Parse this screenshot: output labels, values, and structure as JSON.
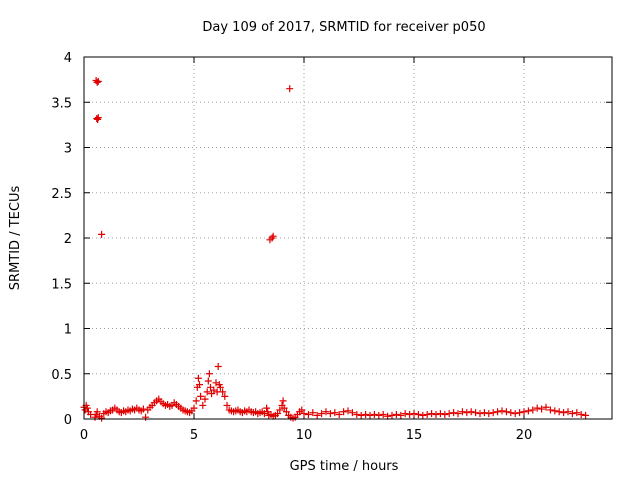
{
  "chart_data": {
    "type": "scatter",
    "title": "Day 109 of 2017, SRMTID for receiver p050",
    "xlabel": "GPS time / hours",
    "ylabel": "SRMTID / TECUs",
    "xlim": [
      0,
      24
    ],
    "ylim": [
      0,
      4
    ],
    "x_ticks": [
      0,
      5,
      10,
      15,
      20
    ],
    "x_tick_labels": [
      "0",
      "5",
      "10",
      "15",
      "20"
    ],
    "y_ticks": [
      0,
      0.5,
      1,
      1.5,
      2,
      2.5,
      3,
      3.5,
      4
    ],
    "y_tick_labels": [
      "0",
      "0.5",
      "1",
      "1.5",
      "2",
      "2.5",
      "3",
      "3.5",
      "4"
    ],
    "grid": true,
    "series": [
      {
        "name": "SRMTID",
        "color": "#e00000",
        "marker": "plus",
        "points": [
          [
            0.0,
            0.13
          ],
          [
            0.05,
            0.1
          ],
          [
            0.1,
            0.15
          ],
          [
            0.15,
            0.12
          ],
          [
            0.2,
            0.08
          ],
          [
            0.3,
            0.05
          ],
          [
            0.5,
            0.02
          ],
          [
            0.55,
            0.05
          ],
          [
            0.6,
            0.08
          ],
          [
            0.7,
            0.03
          ],
          [
            0.8,
            0.01
          ],
          [
            0.9,
            0.06
          ],
          [
            1.0,
            0.08
          ],
          [
            1.1,
            0.07
          ],
          [
            1.2,
            0.09
          ],
          [
            1.3,
            0.1
          ],
          [
            1.4,
            0.12
          ],
          [
            1.5,
            0.1
          ],
          [
            1.6,
            0.08
          ],
          [
            1.7,
            0.07
          ],
          [
            1.8,
            0.09
          ],
          [
            1.9,
            0.08
          ],
          [
            2.0,
            0.1
          ],
          [
            2.1,
            0.09
          ],
          [
            2.2,
            0.11
          ],
          [
            2.3,
            0.1
          ],
          [
            2.4,
            0.12
          ],
          [
            2.5,
            0.1
          ],
          [
            2.6,
            0.09
          ],
          [
            2.7,
            0.11
          ],
          [
            2.8,
            0.02
          ],
          [
            2.9,
            0.1
          ],
          [
            3.0,
            0.13
          ],
          [
            3.1,
            0.15
          ],
          [
            3.2,
            0.18
          ],
          [
            3.3,
            0.2
          ],
          [
            3.4,
            0.22
          ],
          [
            3.5,
            0.19
          ],
          [
            3.6,
            0.17
          ],
          [
            3.7,
            0.15
          ],
          [
            3.8,
            0.16
          ],
          [
            3.9,
            0.14
          ],
          [
            4.0,
            0.15
          ],
          [
            4.1,
            0.18
          ],
          [
            4.2,
            0.16
          ],
          [
            4.3,
            0.14
          ],
          [
            4.4,
            0.12
          ],
          [
            4.5,
            0.1
          ],
          [
            4.6,
            0.09
          ],
          [
            4.7,
            0.08
          ],
          [
            4.8,
            0.07
          ],
          [
            4.9,
            0.09
          ],
          [
            5.0,
            0.12
          ],
          [
            5.1,
            0.2
          ],
          [
            5.15,
            0.35
          ],
          [
            5.2,
            0.45
          ],
          [
            5.25,
            0.38
          ],
          [
            5.3,
            0.25
          ],
          [
            5.4,
            0.15
          ],
          [
            5.5,
            0.22
          ],
          [
            5.6,
            0.3
          ],
          [
            5.65,
            0.42
          ],
          [
            5.7,
            0.5
          ],
          [
            5.75,
            0.35
          ],
          [
            5.8,
            0.28
          ],
          [
            5.9,
            0.32
          ],
          [
            6.0,
            0.4
          ],
          [
            6.05,
            0.3
          ],
          [
            6.1,
            0.58
          ],
          [
            6.15,
            0.38
          ],
          [
            6.2,
            0.35
          ],
          [
            6.3,
            0.3
          ],
          [
            6.4,
            0.25
          ],
          [
            6.5,
            0.15
          ],
          [
            6.6,
            0.1
          ],
          [
            6.7,
            0.09
          ],
          [
            6.8,
            0.08
          ],
          [
            6.9,
            0.09
          ],
          [
            7.0,
            0.1
          ],
          [
            7.1,
            0.08
          ],
          [
            7.2,
            0.07
          ],
          [
            7.3,
            0.09
          ],
          [
            7.4,
            0.08
          ],
          [
            7.5,
            0.1
          ],
          [
            7.6,
            0.08
          ],
          [
            7.7,
            0.07
          ],
          [
            7.8,
            0.08
          ],
          [
            7.9,
            0.06
          ],
          [
            8.0,
            0.07
          ],
          [
            8.1,
            0.08
          ],
          [
            8.2,
            0.06
          ],
          [
            8.3,
            0.12
          ],
          [
            8.35,
            0.08
          ],
          [
            8.4,
            0.04
          ],
          [
            8.5,
            0.05
          ],
          [
            8.6,
            0.03
          ],
          [
            8.7,
            0.04
          ],
          [
            8.8,
            0.06
          ],
          [
            8.9,
            0.1
          ],
          [
            9.0,
            0.15
          ],
          [
            9.05,
            0.2
          ],
          [
            9.1,
            0.12
          ],
          [
            9.2,
            0.08
          ],
          [
            9.3,
            0.04
          ],
          [
            9.4,
            0.02
          ],
          [
            9.5,
            0.01
          ],
          [
            9.6,
            0.02
          ],
          [
            9.7,
            0.05
          ],
          [
            9.8,
            0.08
          ],
          [
            9.9,
            0.1
          ],
          [
            10.0,
            0.06
          ],
          [
            10.2,
            0.05
          ],
          [
            10.4,
            0.07
          ],
          [
            10.6,
            0.04
          ],
          [
            10.8,
            0.06
          ],
          [
            11.0,
            0.08
          ],
          [
            11.2,
            0.06
          ],
          [
            11.4,
            0.07
          ],
          [
            11.6,
            0.05
          ],
          [
            11.8,
            0.08
          ],
          [
            12.0,
            0.09
          ],
          [
            12.2,
            0.07
          ],
          [
            12.4,
            0.05
          ],
          [
            12.6,
            0.04
          ],
          [
            12.8,
            0.05
          ],
          [
            13.0,
            0.04
          ],
          [
            13.2,
            0.05
          ],
          [
            13.4,
            0.04
          ],
          [
            13.6,
            0.05
          ],
          [
            13.8,
            0.03
          ],
          [
            14.0,
            0.04
          ],
          [
            14.2,
            0.05
          ],
          [
            14.4,
            0.04
          ],
          [
            14.6,
            0.06
          ],
          [
            14.8,
            0.05
          ],
          [
            15.0,
            0.06
          ],
          [
            15.2,
            0.05
          ],
          [
            15.4,
            0.04
          ],
          [
            15.6,
            0.05
          ],
          [
            15.8,
            0.06
          ],
          [
            16.0,
            0.05
          ],
          [
            16.2,
            0.06
          ],
          [
            16.4,
            0.05
          ],
          [
            16.6,
            0.06
          ],
          [
            16.8,
            0.07
          ],
          [
            17.0,
            0.06
          ],
          [
            17.2,
            0.08
          ],
          [
            17.4,
            0.07
          ],
          [
            17.6,
            0.08
          ],
          [
            17.8,
            0.07
          ],
          [
            18.0,
            0.06
          ],
          [
            18.2,
            0.07
          ],
          [
            18.4,
            0.06
          ],
          [
            18.6,
            0.07
          ],
          [
            18.8,
            0.08
          ],
          [
            19.0,
            0.09
          ],
          [
            19.2,
            0.08
          ],
          [
            19.4,
            0.07
          ],
          [
            19.6,
            0.06
          ],
          [
            19.8,
            0.07
          ],
          [
            20.0,
            0.08
          ],
          [
            20.2,
            0.09
          ],
          [
            20.4,
            0.1
          ],
          [
            20.6,
            0.12
          ],
          [
            20.8,
            0.11
          ],
          [
            21.0,
            0.13
          ],
          [
            21.2,
            0.1
          ],
          [
            21.4,
            0.09
          ],
          [
            21.6,
            0.08
          ],
          [
            21.8,
            0.07
          ],
          [
            22.0,
            0.08
          ],
          [
            22.2,
            0.06
          ],
          [
            22.4,
            0.07
          ],
          [
            22.6,
            0.05
          ],
          [
            22.8,
            0.04
          ],
          [
            0.55,
            3.74
          ],
          [
            0.6,
            3.72
          ],
          [
            0.65,
            3.73
          ],
          [
            0.58,
            3.32
          ],
          [
            0.65,
            3.33
          ],
          [
            0.62,
            3.31
          ],
          [
            0.8,
            2.04
          ],
          [
            8.45,
            1.98
          ],
          [
            8.55,
            2.0
          ],
          [
            8.6,
            2.02
          ],
          [
            9.35,
            3.65
          ]
        ]
      }
    ]
  }
}
